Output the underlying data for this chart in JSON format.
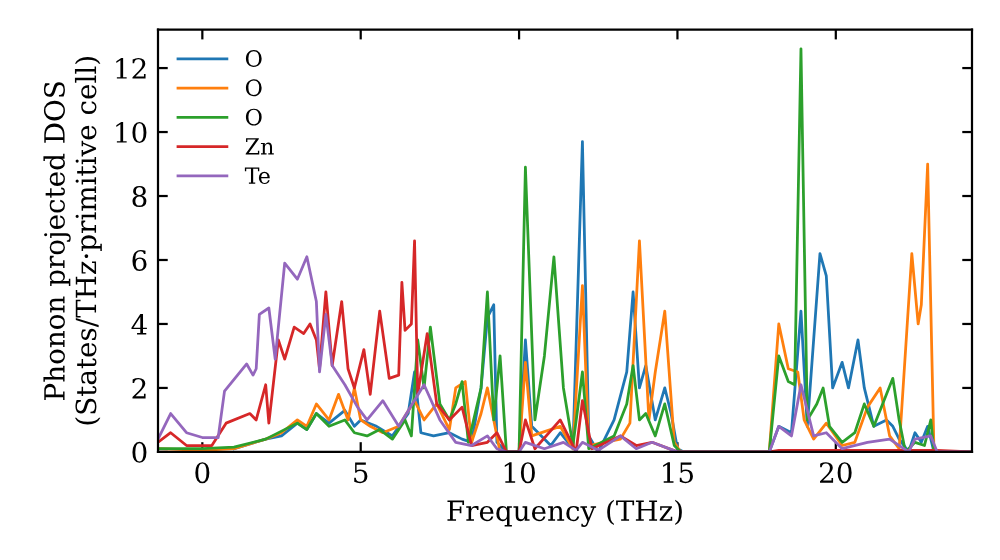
{
  "chart_data": {
    "type": "line",
    "xlabel": "Frequency (THz)",
    "ylabel": "Phonon projected DOS\n(States/THz·primitive cell)",
    "xlim": [
      -1.4,
      24.3
    ],
    "ylim": [
      0,
      13.2
    ],
    "xticks": [
      0,
      5,
      10,
      15,
      20
    ],
    "yticks": [
      0,
      2,
      4,
      6,
      8,
      10,
      12
    ],
    "grid": false,
    "legend": "top left",
    "series": [
      {
        "name": "O",
        "color": "#1f77b4",
        "x": [
          1,
          2,
          2.5,
          3,
          3.3,
          3.6,
          4,
          4.5,
          4.8,
          5,
          5.5,
          6,
          6.5,
          6.7,
          6.9,
          7.3,
          7.8,
          8.2,
          8.5,
          8.8,
          9,
          9.2,
          9.3,
          9.6,
          10,
          10.2,
          10.4,
          11,
          11.3,
          11.7,
          12,
          12.2,
          12.5,
          13,
          13.4,
          13.6,
          13.8,
          14,
          14.3,
          14.6,
          14.8,
          15,
          15.2,
          17.9,
          18.2,
          18.6,
          18.9,
          19.1,
          19.5,
          19.7,
          19.9,
          20.2,
          20.4,
          20.7,
          20.9,
          21.2,
          21.6,
          21.8,
          22,
          22.3,
          22.5,
          22.7,
          22.9,
          23.1,
          24.3
        ],
        "values": [
          0.1,
          0.4,
          0.5,
          0.9,
          0.7,
          1.2,
          0.9,
          1.3,
          0.8,
          1,
          0.8,
          0.5,
          1.2,
          2.5,
          0.6,
          0.5,
          0.6,
          0.4,
          0.3,
          2,
          4.2,
          4.6,
          0.3,
          0,
          0,
          3.5,
          0.8,
          0.2,
          0.6,
          0.1,
          9.7,
          0.5,
          0,
          1,
          2.5,
          5,
          2,
          2.7,
          1,
          2,
          1.2,
          0.1,
          0,
          0,
          0.8,
          0.6,
          4.4,
          0.8,
          6.2,
          5.5,
          2,
          2.8,
          2,
          3.5,
          2,
          0.8,
          1,
          0.8,
          0.4,
          0,
          0.6,
          0.3,
          0.8,
          0,
          0
        ]
      },
      {
        "name": "O",
        "color": "#ff7f0e",
        "x": [
          -1.4,
          0,
          1,
          2,
          2.5,
          3,
          3.3,
          3.6,
          4,
          4.3,
          4.6,
          4.8,
          5,
          5.3,
          5.7,
          6.2,
          6.7,
          7,
          7.4,
          7.8,
          8,
          8.3,
          8.5,
          8.8,
          9,
          9.2,
          9.4,
          10,
          10.2,
          10.4,
          11.3,
          11.7,
          12,
          12.2,
          13.2,
          13.5,
          13.8,
          14.1,
          14.3,
          14.6,
          14.9,
          15.1,
          17.9,
          18.2,
          18.5,
          18.8,
          19,
          19.3,
          19.7,
          20.2,
          20.6,
          21,
          21.4,
          21.7,
          22,
          22.4,
          22.6,
          22.7,
          22.9,
          23.1,
          24.3
        ],
        "values": [
          0.1,
          0.05,
          0.1,
          0.4,
          0.6,
          1,
          0.8,
          1.5,
          1,
          1.8,
          1,
          2,
          1,
          0.8,
          0.6,
          0.8,
          1.6,
          1,
          1.5,
          0.7,
          2,
          2.2,
          0.3,
          1.2,
          2,
          1,
          0,
          0,
          2.8,
          0.5,
          0.8,
          0.1,
          5.2,
          0.2,
          0.4,
          0.9,
          6.6,
          1,
          2.5,
          4.4,
          0.3,
          0,
          0,
          4,
          2.6,
          2.5,
          1,
          0.4,
          0.9,
          0.2,
          0.3,
          1.4,
          2,
          0.5,
          0.1,
          6.2,
          4,
          4.6,
          9,
          0,
          0
        ]
      },
      {
        "name": "O",
        "color": "#2ca02c",
        "x": [
          -1.4,
          0,
          1,
          2,
          3,
          3.3,
          3.6,
          4,
          4.5,
          4.8,
          5.2,
          5.6,
          6,
          6.4,
          6.6,
          6.8,
          7,
          7.2,
          7.5,
          7.8,
          8,
          8.2,
          8.4,
          8.8,
          9,
          9.2,
          9.4,
          9.6,
          10,
          10.2,
          10.5,
          10.8,
          11.1,
          11.4,
          11.7,
          12,
          12.2,
          13,
          13.4,
          13.6,
          13.8,
          14,
          14.3,
          14.6,
          14.9,
          15.1,
          17.9,
          18.2,
          18.5,
          18.7,
          18.9,
          19.1,
          19.4,
          19.6,
          19.8,
          20.2,
          20.6,
          20.9,
          21.2,
          21.6,
          21.8,
          22,
          22.2,
          22.5,
          22.8,
          23,
          23.1,
          24.3
        ],
        "values": [
          0.1,
          0.1,
          0.15,
          0.4,
          0.9,
          0.7,
          1.2,
          0.8,
          1,
          0.6,
          0.5,
          0.7,
          0.4,
          1,
          0.5,
          3.5,
          2,
          3.9,
          1.5,
          1,
          1.5,
          2.2,
          0.3,
          2,
          5,
          1,
          3,
          0,
          0,
          8.9,
          1,
          3,
          6.1,
          2,
          0.2,
          2.5,
          0.1,
          0.5,
          1.5,
          2.7,
          1,
          1.2,
          0.5,
          1.5,
          0.2,
          0,
          0,
          3,
          2.2,
          2.1,
          12.6,
          1,
          1.5,
          2,
          0.8,
          0.3,
          0.6,
          1.5,
          0.8,
          1.8,
          2.3,
          1,
          0,
          0.3,
          0.2,
          1,
          0,
          0
        ]
      },
      {
        "name": "Zn",
        "color": "#d62728",
        "x": [
          -1.4,
          -1,
          -0.5,
          0.3,
          0.75,
          1.5,
          1.7,
          2,
          2.1,
          2.4,
          2.6,
          2.9,
          3.2,
          3.4,
          3.6,
          3.7,
          3.9,
          4.1,
          4.4,
          4.6,
          4.8,
          5.1,
          5.3,
          5.6,
          5.9,
          6.2,
          6.3,
          6.4,
          6.6,
          6.7,
          6.8,
          7.1,
          7.4,
          7.8,
          8.2,
          8.5,
          9,
          9.3,
          9.6,
          10,
          10.2,
          10.5,
          11.3,
          11.8,
          12,
          12.3,
          13.2,
          13.7,
          14.2,
          15,
          17.9,
          18.2,
          23.2,
          24.3
        ],
        "values": [
          0.3,
          0.6,
          0.2,
          0.2,
          0.9,
          1.2,
          1,
          2.1,
          0.9,
          3.5,
          2.9,
          3.9,
          3.7,
          4,
          3.5,
          2.6,
          5,
          2.7,
          4.7,
          2.6,
          2,
          3.2,
          1.8,
          4.4,
          2.3,
          2.4,
          5.3,
          3.8,
          4,
          6.6,
          1.8,
          3.7,
          1.5,
          1,
          1.4,
          0.2,
          0.3,
          0.6,
          0,
          0,
          1,
          0.1,
          1,
          0,
          1.6,
          0.1,
          0.5,
          0.2,
          0.3,
          0,
          0,
          0.05,
          0.05,
          0
        ]
      },
      {
        "name": "Te",
        "color": "#9467bd",
        "x": [
          -1.4,
          -1,
          -0.5,
          0,
          0.5,
          0.7,
          1.4,
          1.6,
          1.7,
          1.8,
          2.1,
          2.3,
          2.6,
          3,
          3.3,
          3.6,
          3.7,
          3.9,
          4.1,
          4.5,
          4.9,
          5.2,
          5.7,
          6.2,
          7,
          7.5,
          8,
          8.5,
          9,
          9.3,
          9.6,
          10,
          10.2,
          10.8,
          11.4,
          11.8,
          12,
          12.5,
          13.2,
          13.7,
          14.2,
          15,
          17.9,
          18.2,
          18.6,
          18.9,
          19.3,
          19.7,
          20.2,
          21,
          21.7,
          22.3,
          22.5,
          23,
          23.2,
          24.3
        ],
        "values": [
          0.4,
          1.2,
          0.6,
          0.45,
          0.45,
          1.9,
          2.75,
          2.4,
          2.6,
          4.3,
          4.5,
          2.9,
          5.9,
          5.4,
          6.1,
          4.7,
          2.5,
          4.3,
          2.7,
          2.1,
          1.4,
          1,
          1.6,
          0.8,
          2.1,
          1,
          0.3,
          0.2,
          0.5,
          0.1,
          0,
          0,
          0.3,
          0.1,
          0.3,
          0.05,
          0.3,
          0.05,
          0.5,
          0.1,
          0.3,
          0,
          0,
          0.8,
          0.5,
          2.1,
          0.5,
          0.6,
          0.1,
          0.3,
          0.4,
          0,
          0.4,
          0.5,
          0,
          0
        ]
      }
    ]
  }
}
